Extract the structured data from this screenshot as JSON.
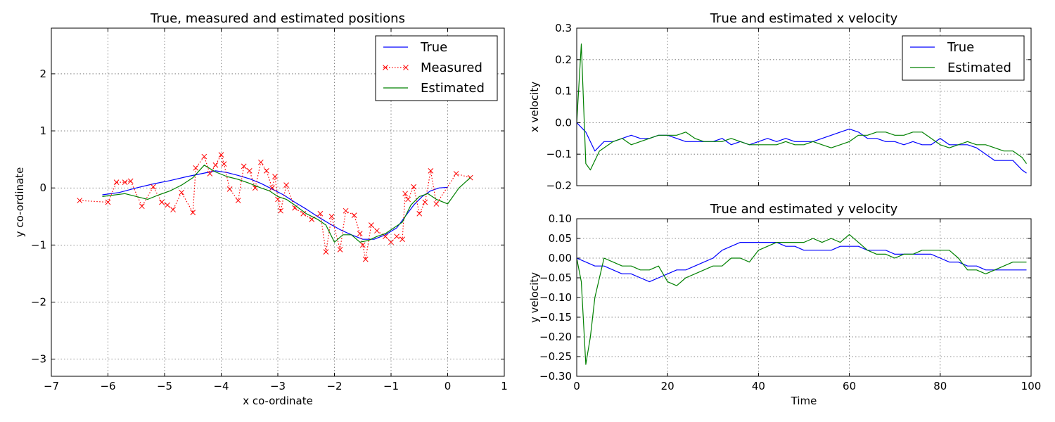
{
  "chart_data": [
    {
      "type": "line",
      "title": "True, measured and estimated positions",
      "xlabel": "x co-ordinate",
      "ylabel": "y co-ordinate",
      "xlim": [
        -7,
        1
      ],
      "ylim": [
        -3.3,
        2.8
      ],
      "xticks": [
        -7,
        -6,
        -5,
        -4,
        -3,
        -2,
        -1,
        0,
        1
      ],
      "xtick_labels": [
        "−7",
        "−6",
        "−5",
        "−4",
        "−3",
        "−2",
        "−1",
        "0",
        "1"
      ],
      "yticks": [
        -3,
        -2,
        -1,
        0,
        1,
        2
      ],
      "ytick_labels": [
        "−3",
        "−2",
        "−1",
        "0",
        "1",
        "2"
      ],
      "grid": true,
      "legend_position": "top-right",
      "series": [
        {
          "name": "True",
          "color": "#0000ff",
          "style": "solid",
          "x": [
            -6.1,
            -5.8,
            -5.5,
            -5.2,
            -4.9,
            -4.6,
            -4.3,
            -4.1,
            -3.9,
            -3.7,
            -3.5,
            -3.3,
            -3.1,
            -2.9,
            -2.7,
            -2.5,
            -2.3,
            -2.1,
            -1.9,
            -1.7,
            -1.5,
            -1.3,
            -1.1,
            -0.9,
            -0.75,
            -0.6,
            -0.45,
            -0.3,
            -0.15,
            0.0
          ],
          "y": [
            -0.12,
            -0.08,
            0.0,
            0.07,
            0.13,
            0.2,
            0.26,
            0.3,
            0.27,
            0.22,
            0.16,
            0.08,
            -0.02,
            -0.12,
            -0.25,
            -0.37,
            -0.5,
            -0.62,
            -0.73,
            -0.82,
            -0.9,
            -0.9,
            -0.82,
            -0.7,
            -0.5,
            -0.3,
            -0.15,
            -0.05,
            0.0,
            0.01
          ]
        },
        {
          "name": "Measured",
          "color": "#ff0000",
          "style": "dotted-x",
          "x": [
            -6.5,
            -6.0,
            -5.85,
            -5.7,
            -5.6,
            -5.4,
            -5.2,
            -5.05,
            -4.95,
            -4.85,
            -4.7,
            -4.5,
            -4.45,
            -4.3,
            -4.2,
            -4.1,
            -4.0,
            -3.95,
            -3.85,
            -3.7,
            -3.6,
            -3.5,
            -3.4,
            -3.3,
            -3.2,
            -3.1,
            -3.05,
            -3.0,
            -2.95,
            -2.85,
            -2.7,
            -2.55,
            -2.4,
            -2.25,
            -2.15,
            -2.05,
            -1.9,
            -1.8,
            -1.65,
            -1.55,
            -1.5,
            -1.45,
            -1.35,
            -1.25,
            -1.1,
            -1.0,
            -0.9,
            -0.8,
            -0.75,
            -0.7,
            -0.6,
            -0.5,
            -0.4,
            -0.3,
            -0.2,
            0.15,
            0.4
          ],
          "y": [
            -0.22,
            -0.25,
            0.1,
            0.1,
            0.12,
            -0.32,
            0.02,
            -0.25,
            -0.3,
            -0.38,
            -0.08,
            -0.43,
            0.35,
            0.55,
            0.25,
            0.4,
            0.58,
            0.42,
            -0.02,
            -0.22,
            0.38,
            0.3,
            0.0,
            0.45,
            0.3,
            0.0,
            0.2,
            -0.2,
            -0.4,
            0.05,
            -0.35,
            -0.45,
            -0.55,
            -0.45,
            -1.12,
            -0.5,
            -1.08,
            -0.4,
            -0.48,
            -0.8,
            -1.0,
            -1.25,
            -0.65,
            -0.75,
            -0.85,
            -0.95,
            -0.85,
            -0.9,
            -0.1,
            -0.2,
            0.02,
            -0.45,
            -0.25,
            0.3,
            -0.28,
            0.25,
            0.18
          ]
        },
        {
          "name": "Estimated",
          "color": "#008000",
          "style": "solid",
          "x": [
            -6.1,
            -5.7,
            -5.3,
            -5.1,
            -4.9,
            -4.7,
            -4.5,
            -4.3,
            -4.1,
            -3.9,
            -3.7,
            -3.5,
            -3.3,
            -3.15,
            -3.0,
            -2.85,
            -2.7,
            -2.5,
            -2.3,
            -2.15,
            -2.0,
            -1.85,
            -1.7,
            -1.55,
            -1.4,
            -1.25,
            -1.1,
            -0.95,
            -0.8,
            -0.65,
            -0.5,
            -0.35,
            -0.2,
            0.0,
            0.2,
            0.4
          ],
          "y": [
            -0.15,
            -0.1,
            -0.2,
            -0.12,
            -0.05,
            0.05,
            0.18,
            0.4,
            0.28,
            0.2,
            0.15,
            0.08,
            0.0,
            -0.05,
            -0.15,
            -0.2,
            -0.3,
            -0.45,
            -0.55,
            -0.65,
            -0.95,
            -0.82,
            -0.82,
            -0.95,
            -0.92,
            -0.85,
            -0.8,
            -0.7,
            -0.6,
            -0.3,
            -0.15,
            -0.1,
            -0.2,
            -0.28,
            0.0,
            0.18
          ]
        }
      ]
    },
    {
      "type": "line",
      "title": "True and estimated x velocity",
      "xlabel": "",
      "ylabel": "x velocity",
      "xlim": [
        0,
        100
      ],
      "ylim": [
        -0.2,
        0.3
      ],
      "xticks": [
        0,
        20,
        40,
        60,
        80,
        100
      ],
      "xtick_labels": [],
      "yticks": [
        -0.2,
        -0.1,
        0.0,
        0.1,
        0.2,
        0.3
      ],
      "ytick_labels": [
        "−0.2",
        "−0.1",
        "0.0",
        "0.1",
        "0.2",
        "0.3"
      ],
      "grid": true,
      "legend_position": "top-right",
      "series": [
        {
          "name": "True",
          "color": "#0000ff",
          "x": [
            0,
            2,
            4,
            6,
            8,
            10,
            12,
            14,
            16,
            18,
            20,
            22,
            24,
            26,
            28,
            30,
            32,
            34,
            36,
            38,
            40,
            42,
            44,
            46,
            48,
            50,
            52,
            54,
            56,
            58,
            60,
            62,
            64,
            66,
            68,
            70,
            72,
            74,
            76,
            78,
            80,
            82,
            84,
            86,
            88,
            90,
            92,
            94,
            96,
            98,
            99
          ],
          "y": [
            0.0,
            -0.03,
            -0.09,
            -0.06,
            -0.06,
            -0.05,
            -0.04,
            -0.05,
            -0.05,
            -0.04,
            -0.04,
            -0.05,
            -0.06,
            -0.06,
            -0.06,
            -0.06,
            -0.05,
            -0.07,
            -0.06,
            -0.07,
            -0.06,
            -0.05,
            -0.06,
            -0.05,
            -0.06,
            -0.06,
            -0.06,
            -0.05,
            -0.04,
            -0.03,
            -0.02,
            -0.03,
            -0.05,
            -0.05,
            -0.06,
            -0.06,
            -0.07,
            -0.06,
            -0.07,
            -0.07,
            -0.05,
            -0.07,
            -0.07,
            -0.07,
            -0.08,
            -0.1,
            -0.12,
            -0.12,
            -0.12,
            -0.15,
            -0.16
          ]
        },
        {
          "name": "Estimated",
          "color": "#008000",
          "x": [
            0,
            1,
            2,
            3,
            4,
            5,
            6,
            8,
            10,
            12,
            14,
            16,
            18,
            20,
            22,
            24,
            26,
            28,
            30,
            32,
            34,
            36,
            38,
            40,
            42,
            44,
            46,
            48,
            50,
            52,
            54,
            56,
            58,
            60,
            62,
            64,
            66,
            68,
            70,
            72,
            74,
            76,
            78,
            80,
            82,
            84,
            86,
            88,
            90,
            92,
            94,
            96,
            98,
            99
          ],
          "y": [
            0.0,
            0.25,
            -0.13,
            -0.15,
            -0.12,
            -0.09,
            -0.08,
            -0.06,
            -0.05,
            -0.07,
            -0.06,
            -0.05,
            -0.04,
            -0.04,
            -0.04,
            -0.03,
            -0.05,
            -0.06,
            -0.06,
            -0.06,
            -0.05,
            -0.06,
            -0.07,
            -0.07,
            -0.07,
            -0.07,
            -0.06,
            -0.07,
            -0.07,
            -0.06,
            -0.07,
            -0.08,
            -0.07,
            -0.06,
            -0.04,
            -0.04,
            -0.03,
            -0.03,
            -0.04,
            -0.04,
            -0.03,
            -0.03,
            -0.05,
            -0.07,
            -0.08,
            -0.07,
            -0.06,
            -0.07,
            -0.07,
            -0.08,
            -0.09,
            -0.09,
            -0.11,
            -0.13
          ]
        }
      ]
    },
    {
      "type": "line",
      "title": "True and estimated y velocity",
      "xlabel": "Time",
      "ylabel": "y velocity",
      "xlim": [
        0,
        100
      ],
      "ylim": [
        -0.3,
        0.1
      ],
      "xticks": [
        0,
        20,
        40,
        60,
        80,
        100
      ],
      "xtick_labels": [
        "0",
        "20",
        "40",
        "60",
        "80",
        "100"
      ],
      "yticks": [
        -0.3,
        -0.25,
        -0.2,
        -0.15,
        -0.1,
        -0.05,
        0.0,
        0.05,
        0.1
      ],
      "ytick_labels": [
        "−0.30",
        "−0.25",
        "−0.20",
        "−0.15",
        "−0.10",
        "−0.05",
        "0.00",
        "0.05",
        "0.10"
      ],
      "grid": true,
      "legend_position": "",
      "series": [
        {
          "name": "True",
          "color": "#0000ff",
          "x": [
            0,
            2,
            4,
            6,
            8,
            10,
            12,
            14,
            16,
            18,
            20,
            22,
            24,
            26,
            28,
            30,
            32,
            34,
            36,
            38,
            40,
            42,
            44,
            46,
            48,
            50,
            52,
            54,
            56,
            58,
            60,
            62,
            64,
            66,
            68,
            70,
            72,
            74,
            76,
            78,
            80,
            82,
            84,
            86,
            88,
            90,
            92,
            94,
            96,
            98,
            99
          ],
          "y": [
            0.0,
            -0.01,
            -0.02,
            -0.02,
            -0.03,
            -0.04,
            -0.04,
            -0.05,
            -0.06,
            -0.05,
            -0.04,
            -0.03,
            -0.03,
            -0.02,
            -0.01,
            0.0,
            0.02,
            0.03,
            0.04,
            0.04,
            0.04,
            0.04,
            0.04,
            0.03,
            0.03,
            0.02,
            0.02,
            0.02,
            0.02,
            0.03,
            0.03,
            0.03,
            0.02,
            0.02,
            0.02,
            0.01,
            0.01,
            0.01,
            0.01,
            0.01,
            0.0,
            -0.01,
            -0.01,
            -0.02,
            -0.02,
            -0.03,
            -0.03,
            -0.03,
            -0.03,
            -0.03,
            -0.03
          ]
        },
        {
          "name": "Estimated",
          "color": "#008000",
          "x": [
            0,
            1,
            2,
            3,
            4,
            5,
            6,
            8,
            10,
            12,
            14,
            16,
            18,
            20,
            22,
            24,
            26,
            28,
            30,
            32,
            34,
            36,
            38,
            40,
            42,
            44,
            46,
            48,
            50,
            52,
            54,
            56,
            58,
            60,
            62,
            64,
            66,
            68,
            70,
            72,
            74,
            76,
            78,
            80,
            82,
            84,
            86,
            88,
            90,
            92,
            94,
            96,
            98,
            99
          ],
          "y": [
            0.0,
            -0.06,
            -0.27,
            -0.2,
            -0.1,
            -0.05,
            0.0,
            -0.01,
            -0.02,
            -0.02,
            -0.03,
            -0.03,
            -0.02,
            -0.06,
            -0.07,
            -0.05,
            -0.04,
            -0.03,
            -0.02,
            -0.02,
            0.0,
            0.0,
            -0.01,
            0.02,
            0.03,
            0.04,
            0.04,
            0.04,
            0.04,
            0.05,
            0.04,
            0.05,
            0.04,
            0.06,
            0.04,
            0.02,
            0.01,
            0.01,
            0.0,
            0.01,
            0.01,
            0.02,
            0.02,
            0.02,
            0.02,
            0.0,
            -0.03,
            -0.03,
            -0.04,
            -0.03,
            -0.02,
            -0.01,
            -0.01,
            -0.01
          ]
        }
      ]
    }
  ]
}
